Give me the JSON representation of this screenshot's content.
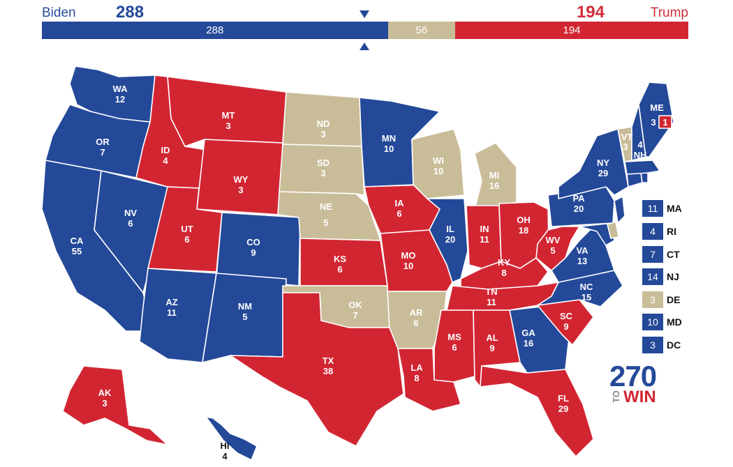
{
  "header": {
    "dem_name": "Biden",
    "dem_votes": "288",
    "rep_name": "Trump",
    "rep_votes": "194"
  },
  "bar": {
    "dem": "288",
    "tossup": "56",
    "rep": "194",
    "dem_value": 288,
    "tossup_value": 56,
    "rep_value": 194
  },
  "colors": {
    "dem": "#244999",
    "rep": "#d22532",
    "tossup": "#c9bc98"
  },
  "states": [
    {
      "abbr": "WA",
      "ev": "12",
      "party": "D"
    },
    {
      "abbr": "OR",
      "ev": "7",
      "party": "D"
    },
    {
      "abbr": "CA",
      "ev": "55",
      "party": "D"
    },
    {
      "abbr": "NV",
      "ev": "6",
      "party": "D"
    },
    {
      "abbr": "ID",
      "ev": "4",
      "party": "R"
    },
    {
      "abbr": "MT",
      "ev": "3",
      "party": "R"
    },
    {
      "abbr": "WY",
      "ev": "3",
      "party": "R"
    },
    {
      "abbr": "UT",
      "ev": "6",
      "party": "R"
    },
    {
      "abbr": "CO",
      "ev": "9",
      "party": "D"
    },
    {
      "abbr": "AZ",
      "ev": "11",
      "party": "D"
    },
    {
      "abbr": "NM",
      "ev": "5",
      "party": "D"
    },
    {
      "abbr": "ND",
      "ev": "3",
      "party": "T"
    },
    {
      "abbr": "SD",
      "ev": "3",
      "party": "T"
    },
    {
      "abbr": "NE",
      "ev": "5",
      "party": "T"
    },
    {
      "abbr": "KS",
      "ev": "6",
      "party": "R"
    },
    {
      "abbr": "OK",
      "ev": "7",
      "party": "T"
    },
    {
      "abbr": "TX",
      "ev": "38",
      "party": "R"
    },
    {
      "abbr": "MN",
      "ev": "10",
      "party": "D"
    },
    {
      "abbr": "IA",
      "ev": "6",
      "party": "R"
    },
    {
      "abbr": "MO",
      "ev": "10",
      "party": "R"
    },
    {
      "abbr": "AR",
      "ev": "6",
      "party": "T"
    },
    {
      "abbr": "LA",
      "ev": "8",
      "party": "R"
    },
    {
      "abbr": "WI",
      "ev": "10",
      "party": "T"
    },
    {
      "abbr": "IL",
      "ev": "20",
      "party": "D"
    },
    {
      "abbr": "MS",
      "ev": "6",
      "party": "R"
    },
    {
      "abbr": "MI",
      "ev": "16",
      "party": "T"
    },
    {
      "abbr": "IN",
      "ev": "11",
      "party": "R"
    },
    {
      "abbr": "KY",
      "ev": "8",
      "party": "R"
    },
    {
      "abbr": "TN",
      "ev": "11",
      "party": "R"
    },
    {
      "abbr": "AL",
      "ev": "9",
      "party": "R"
    },
    {
      "abbr": "OH",
      "ev": "18",
      "party": "R"
    },
    {
      "abbr": "WV",
      "ev": "5",
      "party": "R"
    },
    {
      "abbr": "GA",
      "ev": "16",
      "party": "D"
    },
    {
      "abbr": "FL",
      "ev": "29",
      "party": "R"
    },
    {
      "abbr": "SC",
      "ev": "9",
      "party": "R"
    },
    {
      "abbr": "NC",
      "ev": "15",
      "party": "D"
    },
    {
      "abbr": "VA",
      "ev": "13",
      "party": "D"
    },
    {
      "abbr": "PA",
      "ev": "20",
      "party": "D"
    },
    {
      "abbr": "NY",
      "ev": "29",
      "party": "D"
    },
    {
      "abbr": "VT",
      "ev": "3",
      "party": "T"
    },
    {
      "abbr": "NH",
      "ev": "4",
      "party": "D"
    },
    {
      "abbr": "ME",
      "ev": "3",
      "party": "D"
    },
    {
      "abbr": "ME-2",
      "ev": "1",
      "party": "R"
    },
    {
      "abbr": "AK",
      "ev": "3",
      "party": "R"
    },
    {
      "abbr": "HI",
      "ev": "4",
      "party": "D"
    }
  ],
  "legend": [
    {
      "abbr": "MA",
      "ev": "11",
      "party": "D"
    },
    {
      "abbr": "RI",
      "ev": "4",
      "party": "D"
    },
    {
      "abbr": "CT",
      "ev": "7",
      "party": "D"
    },
    {
      "abbr": "NJ",
      "ev": "14",
      "party": "D"
    },
    {
      "abbr": "DE",
      "ev": "3",
      "party": "T"
    },
    {
      "abbr": "MD",
      "ev": "10",
      "party": "D"
    },
    {
      "abbr": "DC",
      "ev": "3",
      "party": "D"
    }
  ],
  "logo": {
    "number": "270",
    "to": "TO",
    "win": "WIN"
  }
}
